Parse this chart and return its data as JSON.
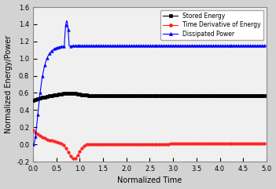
{
  "title": "",
  "xlabel": "Normalized Time",
  "ylabel": "Normalized Energy/Power",
  "xlim": [
    0.0,
    5.0
  ],
  "ylim": [
    -0.2,
    1.6
  ],
  "xticks": [
    0.0,
    0.5,
    1.0,
    1.5,
    2.0,
    2.5,
    3.0,
    3.5,
    4.0,
    4.5,
    5.0
  ],
  "yticks": [
    -0.2,
    0.0,
    0.2,
    0.4,
    0.6,
    0.8,
    1.0,
    1.2,
    1.4,
    1.6
  ],
  "stored_energy_color": "#000000",
  "time_deriv_color": "#ff2222",
  "dissipated_color": "#0000ff",
  "stored_energy_marker": "s",
  "time_deriv_marker": "o",
  "dissipated_marker": "^",
  "legend_labels": [
    "Stored Energy",
    "Time Derivative of Energy",
    "Dissipated Power"
  ],
  "bg_color": "#f0f0f0",
  "fig_bg_color": "#d3d3d3",
  "figsize": [
    3.51,
    2.41
  ],
  "dpi": 100
}
